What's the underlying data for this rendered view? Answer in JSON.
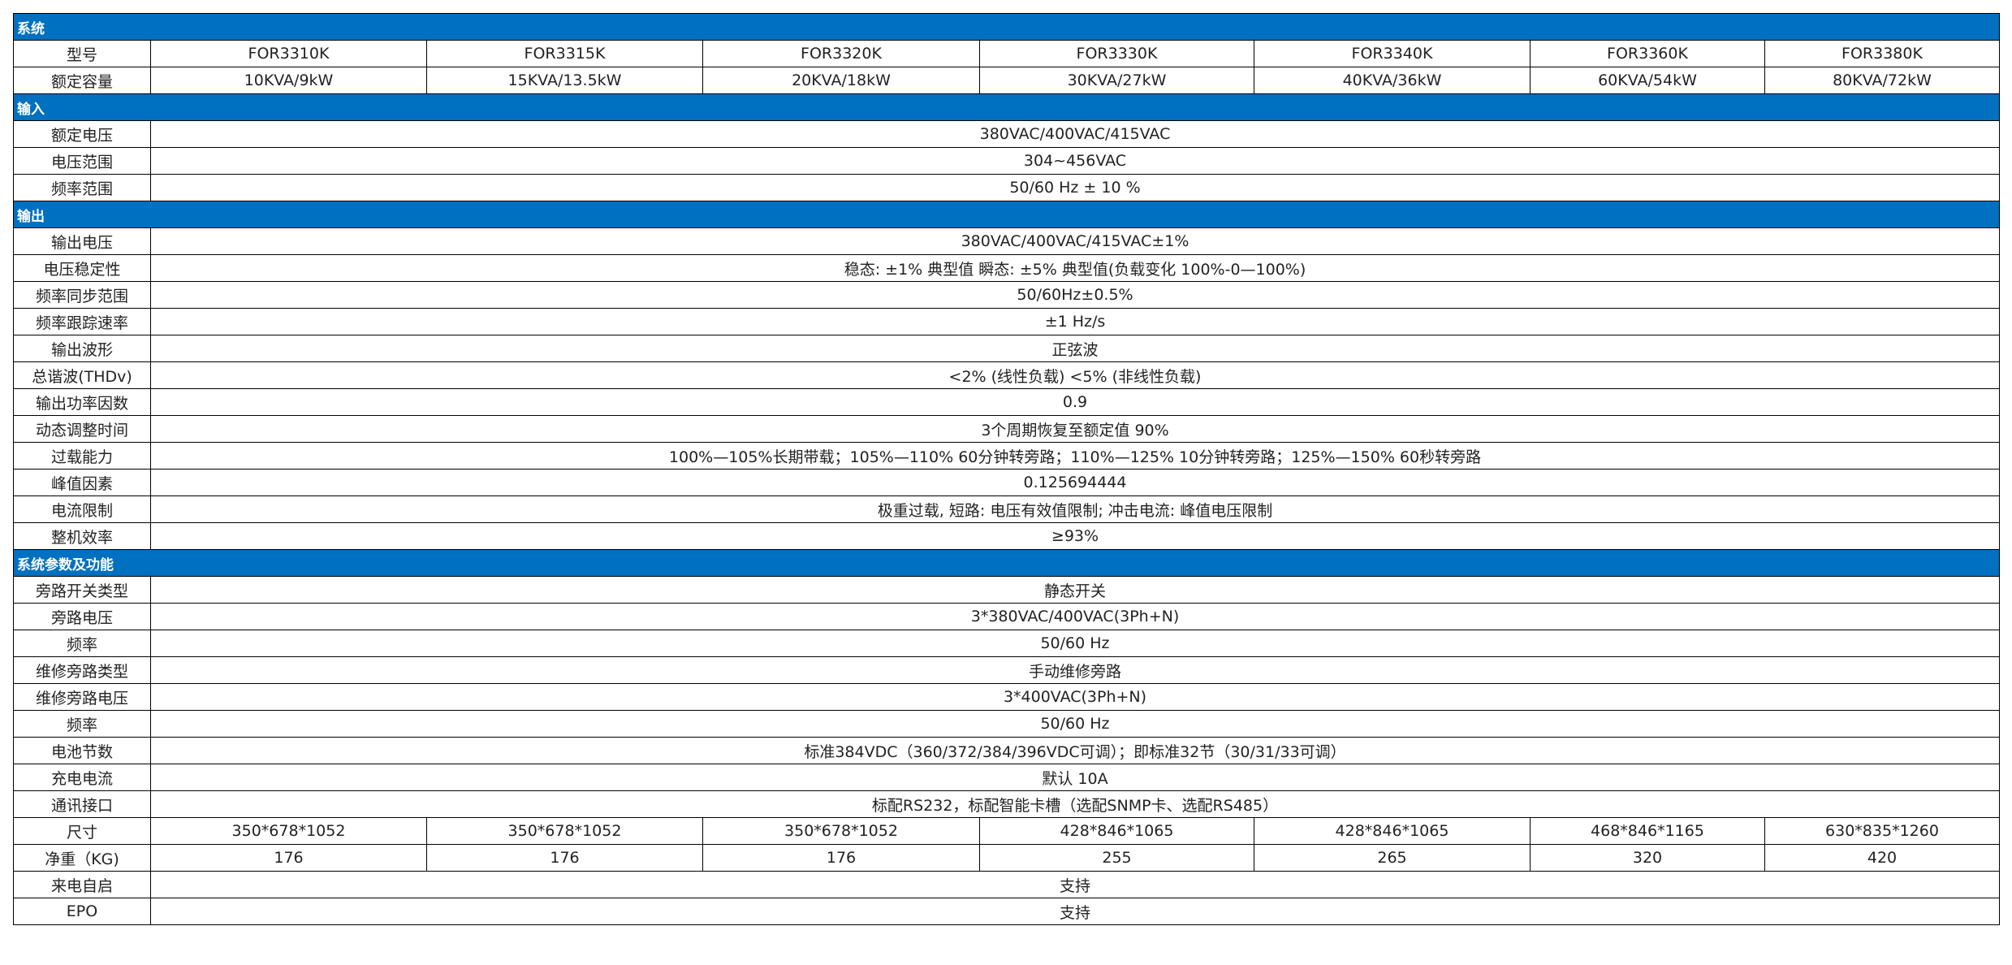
{
  "sections": [
    {
      "title": "系统",
      "rows": [
        {
          "label": "型号",
          "values": [
            "FOR3310K",
            "FOR3315K",
            "FOR3320K",
            "FOR3330K",
            "FOR3340K",
            "FOR3360K",
            "FOR3380K"
          ]
        },
        {
          "label": "额定容量",
          "values": [
            "10KVA/9kW",
            "15KVA/13.5kW",
            "20KVA/18kW",
            "30KVA/27kW",
            "40KVA/36kW",
            "60KVA/54kW",
            "80KVA/72kW"
          ]
        }
      ]
    },
    {
      "title": "输入",
      "rows": [
        {
          "label": "额定电压",
          "values": [
            "380VAC/400VAC/415VAC"
          ]
        },
        {
          "label": "电压范围",
          "values": [
            "304~456VAC"
          ]
        },
        {
          "label": "频率范围",
          "values": [
            "50/60 Hz ± 10 %"
          ]
        }
      ]
    },
    {
      "title": "输出",
      "rows": [
        {
          "label": "输出电压",
          "values": [
            "380VAC/400VAC/415VAC±1%"
          ]
        },
        {
          "label": "电压稳定性",
          "values": [
            "稳态: ±1% 典型值    瞬态: ±5% 典型值(负载变化 100%-0—100%)"
          ]
        },
        {
          "label": "频率同步范围",
          "values": [
            "50/60Hz±0.5%"
          ]
        },
        {
          "label": "频率跟踪速率",
          "values": [
            "±1 Hz/s"
          ]
        },
        {
          "label": "输出波形",
          "values": [
            "正弦波"
          ]
        },
        {
          "label": "总谐波(THDv)",
          "values": [
            "<2% (线性负载)    <5% (非线性负载)"
          ]
        },
        {
          "label": "输出功率因数",
          "values": [
            "0.9"
          ]
        },
        {
          "label": "动态调整时间",
          "values": [
            "3个周期恢复至额定值 90%"
          ]
        },
        {
          "label": "过载能力",
          "values": [
            "100%—105%长期带载；105%—110% 60分钟转旁路；110%—125% 10分钟转旁路；125%—150% 60秒转旁路"
          ]
        },
        {
          "label": "峰值因素",
          "values": [
            "0.125694444"
          ]
        },
        {
          "label": "电流限制",
          "values": [
            "极重过载, 短路: 电压有效值限制; 冲击电流: 峰值电压限制"
          ]
        },
        {
          "label": "整机效率",
          "values": [
            "≥93%"
          ]
        }
      ]
    },
    {
      "title": "系统参数及功能",
      "rows": [
        {
          "label": "旁路开关类型",
          "values": [
            "静态开关"
          ]
        },
        {
          "label": "旁路电压",
          "values": [
            "3*380VAC/400VAC(3Ph+N)"
          ]
        },
        {
          "label": "频率",
          "values": [
            "50/60 Hz"
          ]
        },
        {
          "label": "维修旁路类型",
          "values": [
            "手动维修旁路"
          ]
        },
        {
          "label": "维修旁路电压",
          "values": [
            "3*400VAC(3Ph+N)"
          ]
        },
        {
          "label": "频率",
          "values": [
            "50/60 Hz"
          ]
        },
        {
          "label": "电池节数",
          "values": [
            "标准384VDC（360/372/384/396VDC可调）；即标准32节（30/31/33可调）"
          ]
        },
        {
          "label": "充电电流",
          "values": [
            "默认 10A"
          ]
        },
        {
          "label": "通讯接口",
          "values": [
            "标配RS232，标配智能卡槽（选配SNMP卡、选配RS485）"
          ]
        },
        {
          "label": "尺寸",
          "values": [
            "350*678*1052",
            "350*678*1052",
            "350*678*1052",
            "428*846*1065",
            "428*846*1065",
            "468*846*1165",
            "630*835*1260"
          ]
        },
        {
          "label": "净重（KG)",
          "values": [
            "176",
            "176",
            "176",
            "255",
            "265",
            "320",
            "420"
          ]
        },
        {
          "label": "来电自启",
          "values": [
            "支持"
          ]
        },
        {
          "label": "EPO",
          "values": [
            "支持"
          ]
        }
      ]
    }
  ]
}
